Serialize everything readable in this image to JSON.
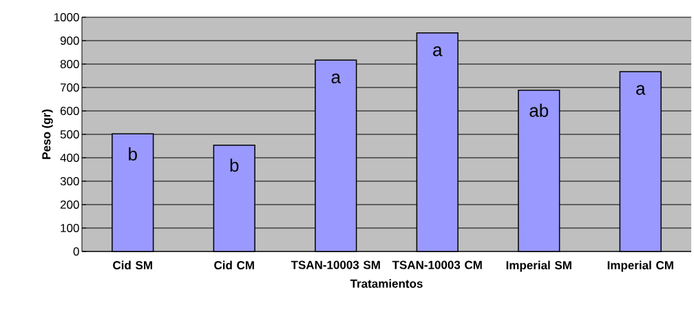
{
  "chart_data": {
    "type": "bar",
    "xlabel": "Tratamientos",
    "ylabel": "Peso (gr)",
    "categories": [
      "Cid SM",
      "Cid CM",
      "TSAN-10003 SM",
      "TSAN-10003 CM",
      "Imperial SM",
      "Imperial CM"
    ],
    "values": [
      502,
      454,
      817,
      933,
      688,
      768
    ],
    "color": "#9999ff",
    "ylim": [
      0,
      1000
    ],
    "yticks": [
      0,
      100,
      200,
      300,
      400,
      500,
      600,
      700,
      800,
      900,
      1000
    ],
    "grid": "y",
    "annotations": [
      "b",
      "b",
      "a",
      "a",
      "ab",
      "a"
    ]
  }
}
